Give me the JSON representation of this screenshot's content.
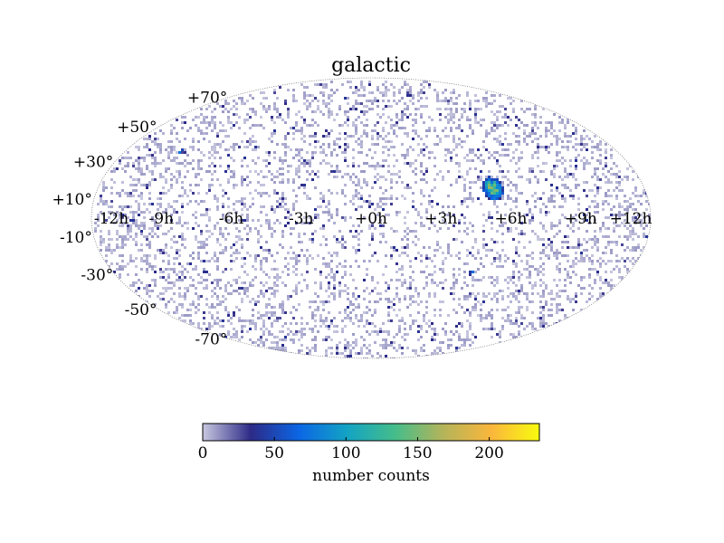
{
  "chart_data": {
    "type": "heatmap",
    "projection": "mollweide",
    "title": "galactic",
    "lon_ticks": [
      "-12h",
      "-9h",
      "-6h",
      "-3h",
      "+0h",
      "+3h",
      "+6h",
      "+9h",
      "+12h"
    ],
    "lat_ticks": [
      "+70°",
      "+50°",
      "+30°",
      "+10°",
      "-10°",
      "-30°",
      "-50°",
      "-70°"
    ],
    "lon_tick_values_hours": [
      -12,
      -9,
      -6,
      -3,
      0,
      3,
      6,
      9,
      12
    ],
    "lat_tick_values_deg": [
      70,
      50,
      30,
      10,
      -10,
      -30,
      -50,
      -70
    ],
    "colorbar": {
      "label": "number counts",
      "ticks": [
        "0",
        "50",
        "100",
        "150",
        "200"
      ],
      "tick_values": [
        0,
        50,
        100,
        150,
        200
      ],
      "range": [
        0,
        235
      ],
      "colors": [
        "#c8c8e0",
        "#2d2a87",
        "#0b66e4",
        "#13a3c4",
        "#45bd8a",
        "#b4b45a",
        "#fab63c",
        "#f9fb0e"
      ]
    },
    "sources": [
      {
        "lon_h": 5.3,
        "lat_deg": 16,
        "peak": 150,
        "radius_deg": 4
      },
      {
        "lon_h": -10.7,
        "lat_deg": 2,
        "peak": 40,
        "radius_deg": 1
      },
      {
        "lon_h": 0.0,
        "lat_deg": -10,
        "peak": 35,
        "radius_deg": 1
      },
      {
        "lon_h": 0.0,
        "lat_deg": -3,
        "peak": 25,
        "radius_deg": 1
      },
      {
        "lon_h": 4.6,
        "lat_deg": -28,
        "peak": 80,
        "radius_deg": 1
      },
      {
        "lon_h": -9.4,
        "lat_deg": 36,
        "peak": 90,
        "radius_deg": 1
      }
    ],
    "background_level": [
      0,
      10
    ],
    "grid": false
  }
}
